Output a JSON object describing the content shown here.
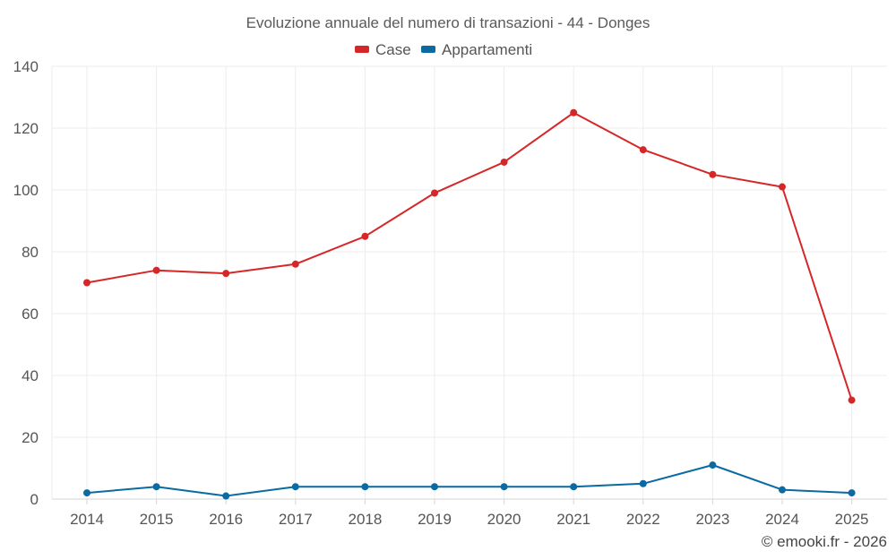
{
  "chart_data": {
    "type": "line",
    "title": "Evoluzione annuale del numero di transazioni - 44 - Donges",
    "categories": [
      "2014",
      "2015",
      "2016",
      "2017",
      "2018",
      "2019",
      "2020",
      "2021",
      "2022",
      "2023",
      "2024",
      "2025"
    ],
    "series": [
      {
        "name": "Case",
        "color": "#d62728",
        "values": [
          70,
          74,
          73,
          76,
          85,
          99,
          109,
          125,
          113,
          105,
          101,
          32
        ]
      },
      {
        "name": "Appartamenti",
        "color": "#0a6aa1",
        "values": [
          2,
          4,
          1,
          4,
          4,
          4,
          4,
          4,
          5,
          11,
          3,
          2
        ]
      }
    ],
    "ylim": [
      0,
      140
    ],
    "yticks": [
      0,
      20,
      40,
      60,
      80,
      100,
      120,
      140
    ],
    "grid": true,
    "legend_position": "top-center",
    "xlabel": "",
    "ylabel": ""
  },
  "credit": "© emooki.fr - 2026"
}
